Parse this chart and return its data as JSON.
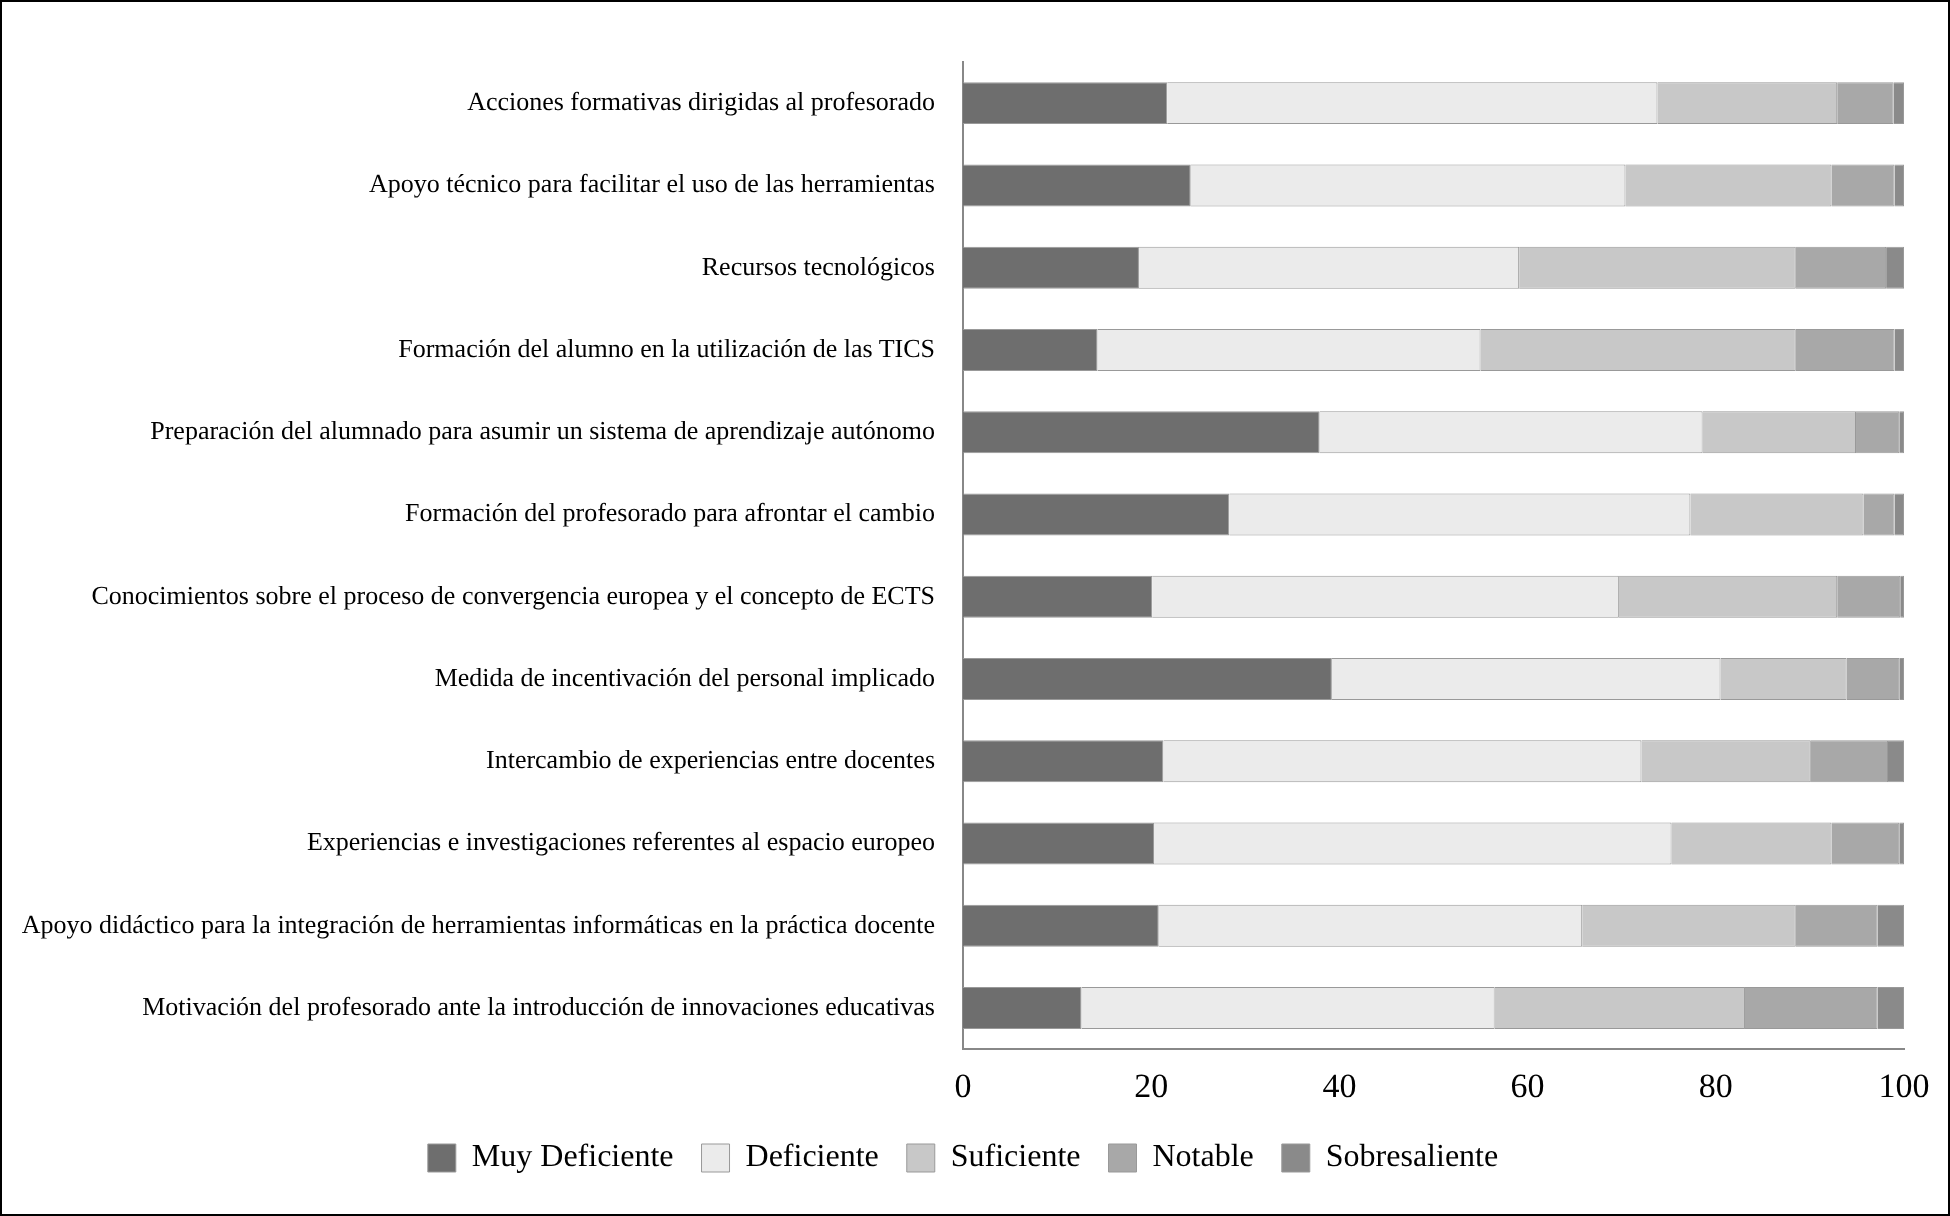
{
  "chart_data": {
    "type": "bar",
    "orientation": "horizontal",
    "stacked": true,
    "categories": [
      "Acciones formativas dirigidas al profesorado",
      "Apoyo técnico para facilitar el uso de las herramientas",
      "Recursos tecnológicos",
      "Formación del alumno en la utilización de las TICS",
      "Preparación del alumnado para asumir un sistema de aprendizaje autónomo",
      "Formación del profesorado para afrontar el cambio",
      "Conocimientos sobre el proceso de convergencia europea y el concepto de ECTS",
      "Medida de incentivación del personal implicado",
      "Intercambio de experiencias entre docentes",
      "Experiencias e investigaciones referentes al espacio europeo",
      "Apoyo didáctico para la integración de herramientas informáticas en la práctica docente",
      "Motivación del profesorado ante la introducción de innovaciones educativas"
    ],
    "series": [
      {
        "name": "Muy Deficiente",
        "color": "#6e6e6e",
        "values": [
          21.7,
          24.2,
          18.7,
          14.3,
          37.9,
          28.3,
          20.1,
          39.2,
          21.3,
          20.3,
          20.8,
          12.6
        ]
      },
      {
        "name": "Deficiente",
        "color": "#ebebeb",
        "values": [
          52.1,
          46.2,
          40.4,
          40.7,
          40.7,
          49.0,
          49.6,
          41.3,
          50.8,
          55.0,
          45.0,
          43.9
        ]
      },
      {
        "name": "Suficiente",
        "color": "#c8c8c8",
        "values": [
          19.1,
          21.9,
          29.4,
          33.5,
          16.3,
          18.4,
          23.2,
          13.4,
          18.0,
          17.0,
          22.7,
          26.6
        ]
      },
      {
        "name": "Notable",
        "color": "#a8a8a8",
        "values": [
          6.0,
          6.7,
          9.6,
          10.5,
          4.6,
          3.3,
          6.7,
          5.6,
          8.2,
          7.2,
          8.7,
          14.1
        ]
      },
      {
        "name": "Sobresaliente",
        "color": "#8a8a8a",
        "values": [
          1.1,
          1.0,
          1.9,
          1.0,
          0.5,
          1.0,
          0.4,
          0.5,
          1.7,
          0.5,
          2.8,
          2.8
        ]
      }
    ],
    "xlim": [
      0,
      100
    ],
    "xticks": [
      0,
      20,
      40,
      60,
      80,
      100
    ],
    "grid": false,
    "legend": "bottom"
  }
}
